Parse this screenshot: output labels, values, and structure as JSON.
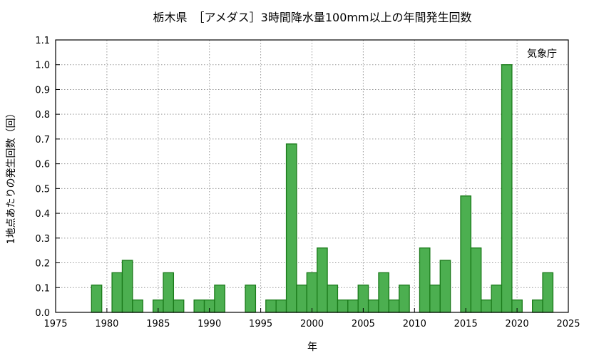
{
  "chart_data": {
    "type": "bar",
    "title": "栃木県　［アメダス］3時間降水量100mm以上の年間発生回数",
    "xlabel": "年",
    "ylabel": "1地点あたりの発生回数（回）",
    "annotation": "気象庁",
    "xlim": [
      1975,
      2025
    ],
    "ylim": [
      0,
      1.1
    ],
    "xticks": [
      1975,
      1980,
      1985,
      1990,
      1995,
      2000,
      2005,
      2010,
      2015,
      2020,
      2025
    ],
    "yticks": [
      0.0,
      0.1,
      0.2,
      0.3,
      0.4,
      0.5,
      0.6,
      0.7,
      0.8,
      0.9,
      1.0,
      1.1
    ],
    "grid": true,
    "bar_color": "#4caf50",
    "bar_edge_color": "#1a7a1a",
    "x": [
      1976,
      1977,
      1978,
      1979,
      1980,
      1981,
      1982,
      1983,
      1984,
      1985,
      1986,
      1987,
      1988,
      1989,
      1990,
      1991,
      1992,
      1993,
      1994,
      1995,
      1996,
      1997,
      1998,
      1999,
      2000,
      2001,
      2002,
      2003,
      2004,
      2005,
      2006,
      2007,
      2008,
      2009,
      2010,
      2011,
      2012,
      2013,
      2014,
      2015,
      2016,
      2017,
      2018,
      2019,
      2020,
      2021,
      2022,
      2023
    ],
    "values": [
      0,
      0,
      0,
      0.11,
      0,
      0.16,
      0.21,
      0.05,
      0,
      0.05,
      0.16,
      0.05,
      0,
      0.05,
      0.05,
      0.11,
      0,
      0,
      0.11,
      0,
      0.05,
      0.05,
      0.68,
      0.11,
      0.16,
      0.26,
      0.11,
      0.05,
      0.05,
      0.11,
      0.05,
      0.16,
      0.05,
      0.11,
      0,
      0.26,
      0.11,
      0.21,
      0,
      0.47,
      0.26,
      0.05,
      0.11,
      1.0,
      0.05,
      0,
      0.05,
      0.16
    ]
  }
}
